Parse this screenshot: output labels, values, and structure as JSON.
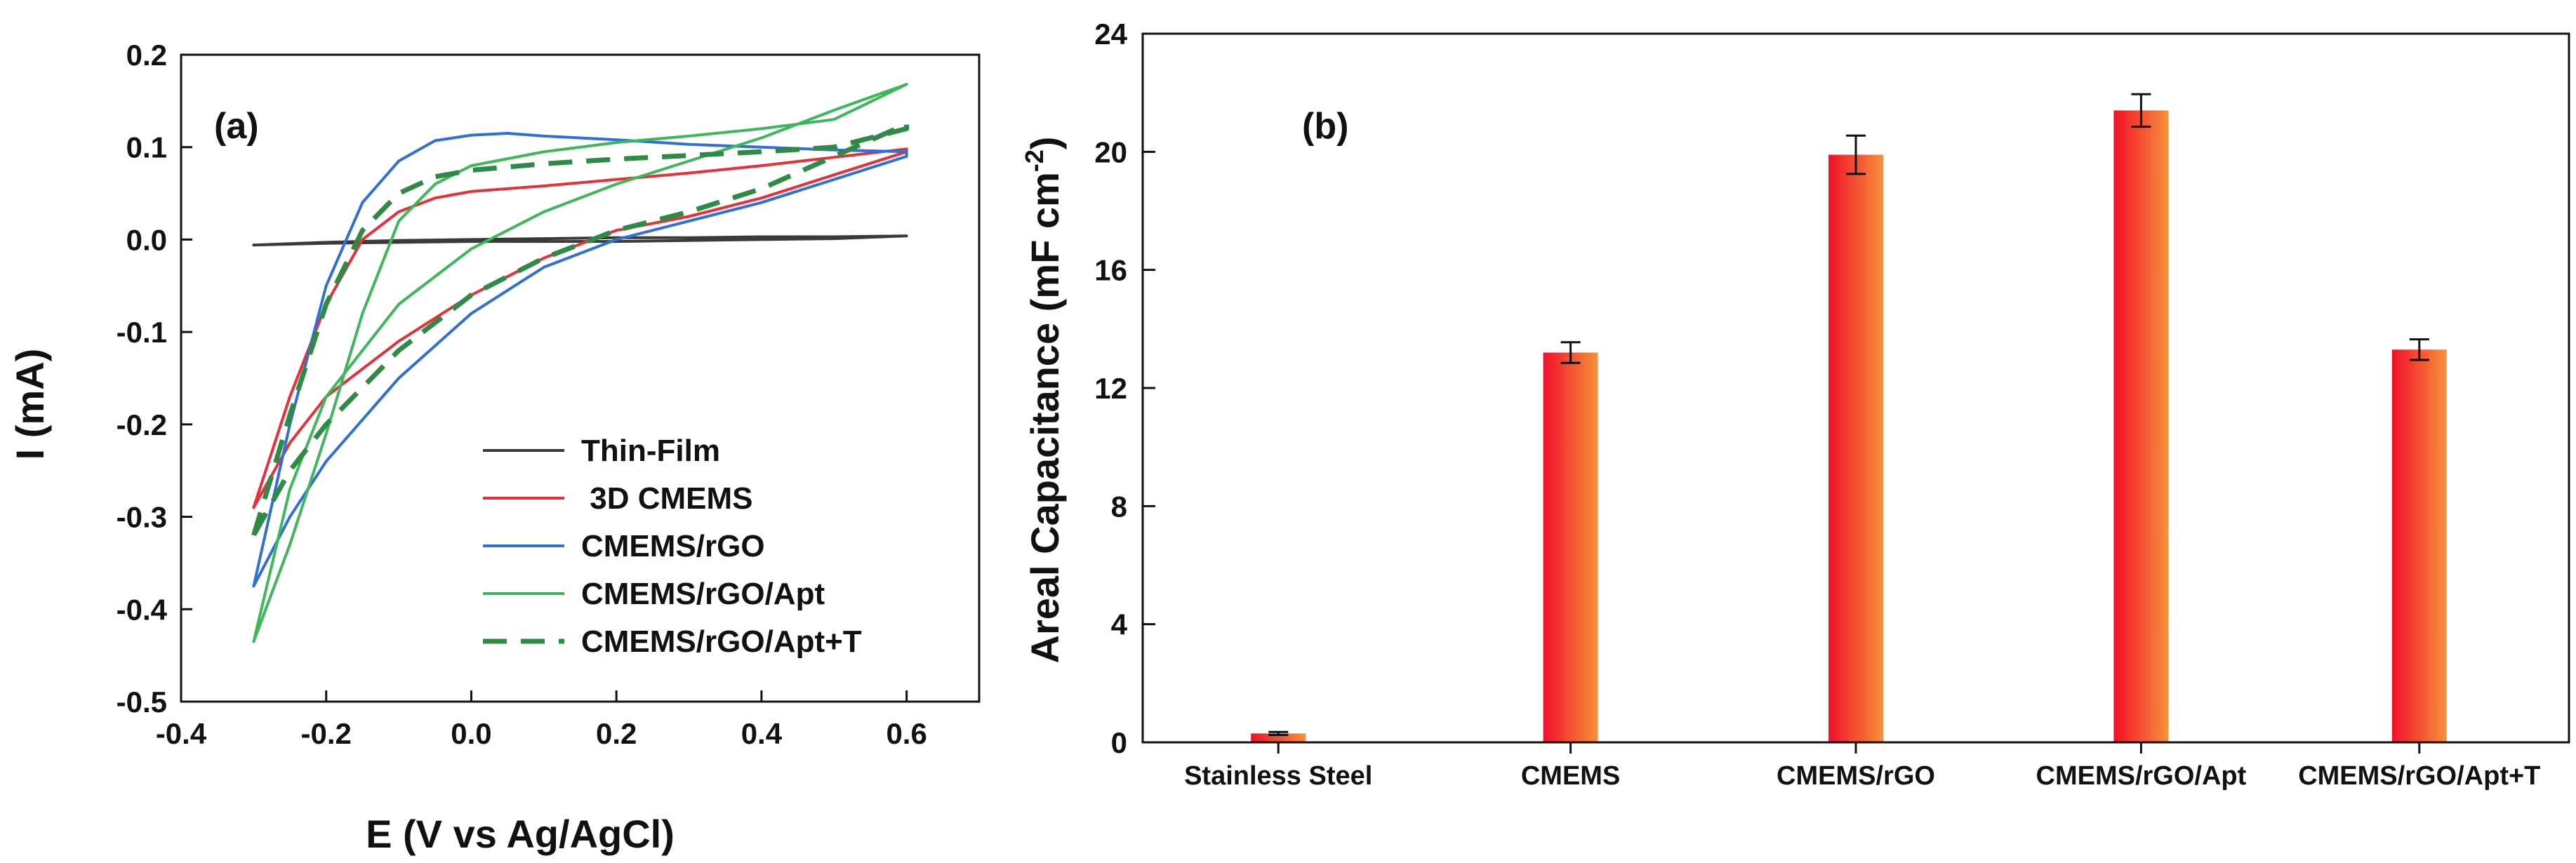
{
  "chart_data": [
    {
      "type": "line",
      "panel_label": "(a)",
      "xlabel": "E (V vs Ag/AgCl)",
      "ylabel": "I (mA)",
      "xlim": [
        -0.4,
        0.7
      ],
      "ylim": [
        -0.5,
        0.2
      ],
      "xticks": [
        -0.4,
        -0.2,
        0.0,
        0.2,
        0.4,
        0.6
      ],
      "yticks": [
        -0.5,
        -0.4,
        -0.3,
        -0.2,
        -0.1,
        0.0,
        0.1,
        0.2
      ],
      "xtick_labels": [
        "-0.4",
        "-0.2",
        "0.0",
        "0.2",
        "0.4",
        "0.6"
      ],
      "ytick_labels": [
        "-0.5",
        "-0.4",
        "-0.3",
        "-0.2",
        "-0.1",
        "0.0",
        "0.1",
        "0.2"
      ],
      "legend": "bottom-right",
      "series": [
        {
          "name": "Thin-Film",
          "color": "#3a3a3a",
          "dash": false,
          "x": [
            -0.3,
            -0.2,
            -0.1,
            0.0,
            0.1,
            0.2,
            0.3,
            0.4,
            0.5,
            0.6,
            0.5,
            0.4,
            0.3,
            0.2,
            0.1,
            0.0,
            -0.1,
            -0.2,
            -0.3
          ],
          "y": [
            -0.006,
            -0.004,
            -0.003,
            -0.002,
            -0.002,
            -0.002,
            -0.001,
            0.0,
            0.001,
            0.004,
            0.003,
            0.003,
            0.002,
            0.002,
            0.001,
            0.0,
            -0.001,
            -0.003,
            -0.006
          ]
        },
        {
          "name": " 3D CMEMS",
          "color": "#e8303a",
          "dash": false,
          "x": [
            -0.3,
            -0.25,
            -0.2,
            -0.15,
            -0.1,
            -0.05,
            0.0,
            0.1,
            0.2,
            0.3,
            0.4,
            0.5,
            0.6,
            0.6,
            0.5,
            0.4,
            0.3,
            0.2,
            0.1,
            0.0,
            -0.1,
            -0.2,
            -0.25,
            -0.3
          ],
          "y": [
            -0.29,
            -0.17,
            -0.07,
            0.0,
            0.03,
            0.045,
            0.052,
            0.058,
            0.065,
            0.072,
            0.08,
            0.089,
            0.098,
            0.095,
            0.07,
            0.045,
            0.025,
            0.01,
            -0.02,
            -0.06,
            -0.11,
            -0.17,
            -0.22,
            -0.29
          ]
        },
        {
          "name": "CMEMS/rGO",
          "color": "#2f6fd6",
          "dash": false,
          "x": [
            -0.3,
            -0.25,
            -0.2,
            -0.15,
            -0.1,
            -0.05,
            0.0,
            0.05,
            0.1,
            0.2,
            0.3,
            0.4,
            0.5,
            0.6,
            0.6,
            0.5,
            0.4,
            0.3,
            0.2,
            0.1,
            0.0,
            -0.1,
            -0.2,
            -0.25,
            -0.3
          ],
          "y": [
            -0.375,
            -0.2,
            -0.05,
            0.04,
            0.085,
            0.107,
            0.113,
            0.115,
            0.112,
            0.108,
            0.103,
            0.1,
            0.097,
            0.095,
            0.09,
            0.065,
            0.04,
            0.02,
            0.0,
            -0.03,
            -0.08,
            -0.15,
            -0.24,
            -0.3,
            -0.375
          ]
        },
        {
          "name": "CMEMS/rGO/Apt",
          "color": "#3cb85a",
          "dash": false,
          "x": [
            -0.3,
            -0.25,
            -0.2,
            -0.15,
            -0.1,
            -0.05,
            0.0,
            0.1,
            0.2,
            0.3,
            0.4,
            0.5,
            0.6,
            0.6,
            0.5,
            0.4,
            0.3,
            0.2,
            0.1,
            0.0,
            -0.1,
            -0.2,
            -0.25,
            -0.3
          ],
          "y": [
            -0.435,
            -0.33,
            -0.21,
            -0.08,
            0.02,
            0.06,
            0.08,
            0.095,
            0.105,
            0.112,
            0.12,
            0.13,
            0.168,
            0.168,
            0.14,
            0.11,
            0.085,
            0.06,
            0.03,
            -0.01,
            -0.07,
            -0.17,
            -0.27,
            -0.435
          ]
        },
        {
          "name": "CMEMS/rGO/Apt+T",
          "color": "#2e8a44",
          "dash": true,
          "x": [
            -0.3,
            -0.25,
            -0.2,
            -0.15,
            -0.1,
            -0.05,
            0.0,
            0.1,
            0.2,
            0.3,
            0.4,
            0.5,
            0.6,
            0.6,
            0.5,
            0.4,
            0.3,
            0.2,
            0.1,
            0.0,
            -0.1,
            -0.2,
            -0.25,
            -0.3
          ],
          "y": [
            -0.32,
            -0.19,
            -0.07,
            0.01,
            0.05,
            0.068,
            0.075,
            0.082,
            0.087,
            0.091,
            0.095,
            0.1,
            0.12,
            0.125,
            0.09,
            0.055,
            0.03,
            0.01,
            -0.02,
            -0.06,
            -0.12,
            -0.2,
            -0.25,
            -0.32
          ]
        }
      ]
    },
    {
      "type": "bar",
      "panel_label": "(b)",
      "xlabel": "",
      "ylabel": "Areal Capacitance (mF cm⁻²)",
      "ylim": [
        0,
        24
      ],
      "yticks": [
        0,
        4,
        8,
        12,
        16,
        20,
        24
      ],
      "ytick_labels": [
        "0",
        "4",
        "8",
        "12",
        "16",
        "20",
        "24"
      ],
      "categories": [
        "Stainless Steel",
        "CMEMS",
        "CMEMS/rGO",
        "CMEMS/rGO/Apt",
        "CMEMS/rGO/Apt+T"
      ],
      "values": [
        0.3,
        13.2,
        19.9,
        21.4,
        13.3
      ],
      "errors": [
        0.05,
        0.35,
        0.65,
        0.55,
        0.35
      ],
      "bar_color_left": "#f0102a",
      "bar_color_right": "#f7913a"
    }
  ]
}
